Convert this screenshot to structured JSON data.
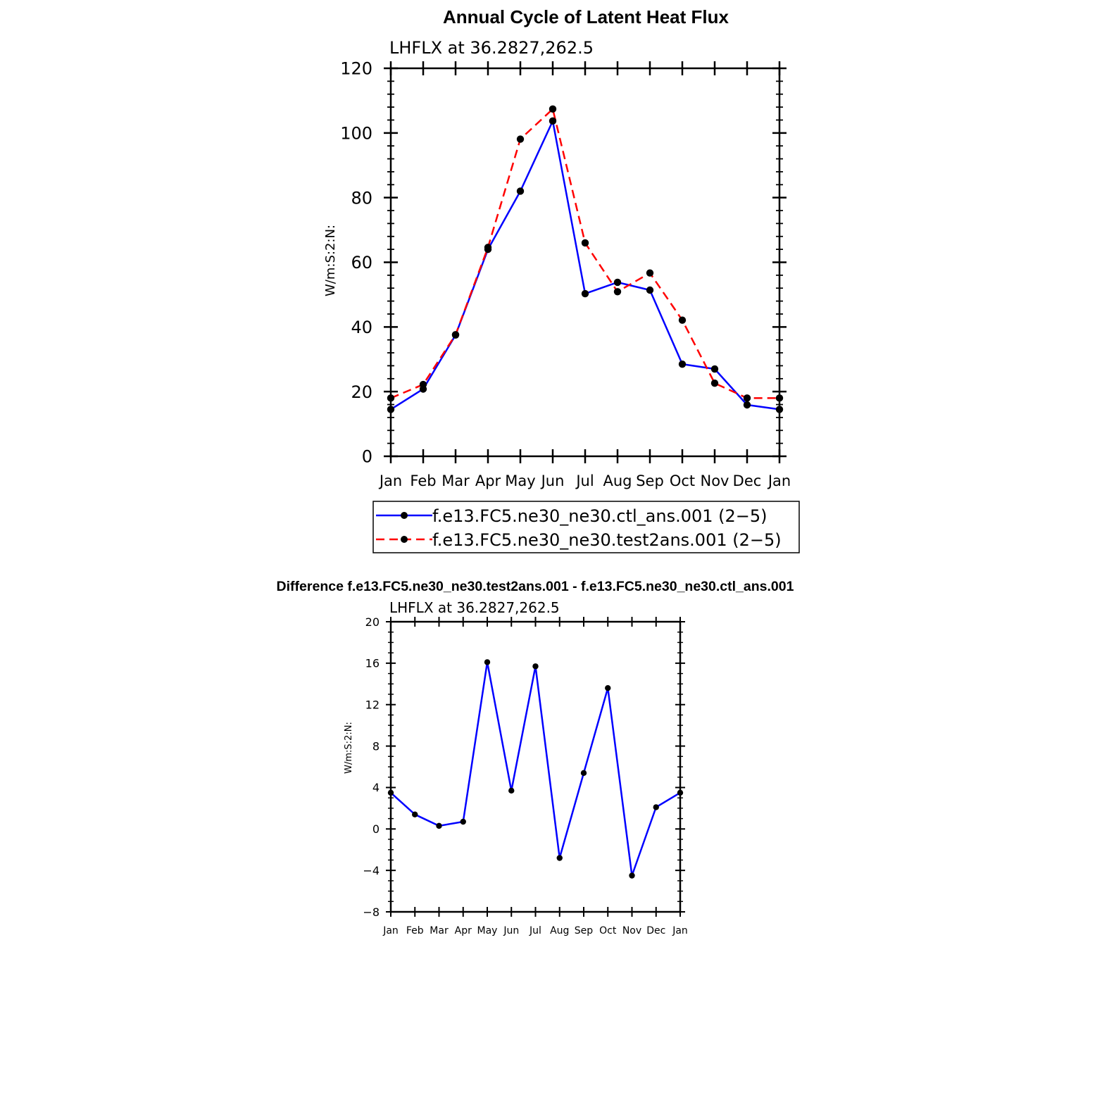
{
  "chart_data": [
    {
      "type": "line",
      "title": "Annual Cycle of Latent Heat Flux",
      "subtitle": "LHFLX at 36.2827,262.5",
      "xlabel": "",
      "ylabel": "W/m:S:2:N:",
      "categories": [
        "Jan",
        "Feb",
        "Mar",
        "Apr",
        "May",
        "Jun",
        "Jul",
        "Aug",
        "Sep",
        "Oct",
        "Nov",
        "Dec",
        "Jan"
      ],
      "ylim": [
        0,
        120
      ],
      "yticks": [
        "0",
        "20",
        "40",
        "60",
        "80",
        "100",
        "120"
      ],
      "grid": false,
      "legend_position": "bottom",
      "series": [
        {
          "name": "f.e13.FC5.ne30_ne30.ctl_ans.001 (2−5)",
          "color": "#0000ff",
          "dash": "solid",
          "values": [
            14.5,
            20.8,
            37.5,
            64.0,
            82.0,
            103.7,
            50.3,
            53.8,
            51.4,
            28.5,
            27.0,
            15.9,
            14.5
          ]
        },
        {
          "name": "f.e13.FC5.ne30_ne30.test2ans.001 (2−5)",
          "color": "#ff0000",
          "dash": "dashed",
          "values": [
            18.0,
            22.2,
            37.6,
            64.6,
            98.1,
            107.4,
            66.0,
            50.9,
            56.7,
            42.1,
            22.6,
            18.0,
            18.0
          ]
        }
      ]
    },
    {
      "type": "line",
      "title": "Difference f.e13.FC5.ne30_ne30.test2ans.001 - f.e13.FC5.ne30_ne30.ctl_ans.001",
      "subtitle": "LHFLX at 36.2827,262.5",
      "xlabel": "",
      "ylabel": "W/m:S:2:N:",
      "categories": [
        "Jan",
        "Feb",
        "Mar",
        "Apr",
        "May",
        "Jun",
        "Jul",
        "Aug",
        "Sep",
        "Oct",
        "Nov",
        "Dec",
        "Jan"
      ],
      "ylim": [
        -8,
        20
      ],
      "yticks": [
        "−8",
        "−4",
        "0",
        "4",
        "8",
        "12",
        "16",
        "20"
      ],
      "grid": false,
      "series": [
        {
          "name": "Difference",
          "color": "#0000ff",
          "dash": "solid",
          "values": [
            3.5,
            1.4,
            0.3,
            0.7,
            16.1,
            3.7,
            15.7,
            -2.8,
            5.4,
            13.6,
            -4.5,
            2.1,
            3.5
          ]
        }
      ]
    }
  ]
}
